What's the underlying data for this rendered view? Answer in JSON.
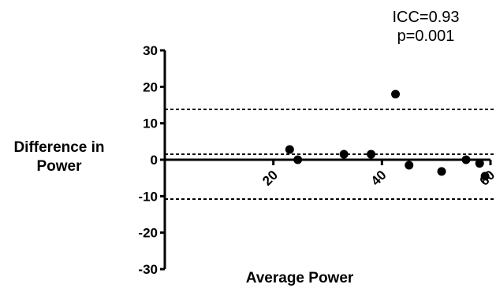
{
  "chart_data": {
    "type": "scatter",
    "title": "",
    "xlabel": "Average Power",
    "ylabel_line1": "Difference in",
    "ylabel_line2": "Power",
    "xlim": [
      0,
      60
    ],
    "ylim": [
      -30,
      30
    ],
    "x_ticks": [
      20,
      40,
      60
    ],
    "y_ticks": [
      30,
      20,
      10,
      0,
      -10,
      -20,
      -30
    ],
    "x_tick_labels": [
      "20",
      "40",
      "60"
    ],
    "y_tick_labels": [
      "30",
      "20",
      "10",
      "0",
      "-10",
      "-20",
      "-30"
    ],
    "points": [
      {
        "x": 23,
        "y": 2.8
      },
      {
        "x": 24.5,
        "y": 0
      },
      {
        "x": 33,
        "y": 1.5
      },
      {
        "x": 38,
        "y": 1.5
      },
      {
        "x": 42.5,
        "y": 18
      },
      {
        "x": 45,
        "y": -1.5
      },
      {
        "x": 51,
        "y": -3.2
      },
      {
        "x": 55.5,
        "y": 0
      },
      {
        "x": 58,
        "y": -1
      },
      {
        "x": 59,
        "y": -4.5
      }
    ],
    "reference_lines": [
      {
        "y": 13.8,
        "style": "dashed"
      },
      {
        "y": 1.5,
        "style": "dashed"
      },
      {
        "y": -10.8,
        "style": "dashed"
      },
      {
        "y": 0,
        "style": "solid"
      }
    ],
    "annotations": [
      "ICC=0.93",
      "p=0.001"
    ],
    "grid": false,
    "legend": "none"
  }
}
